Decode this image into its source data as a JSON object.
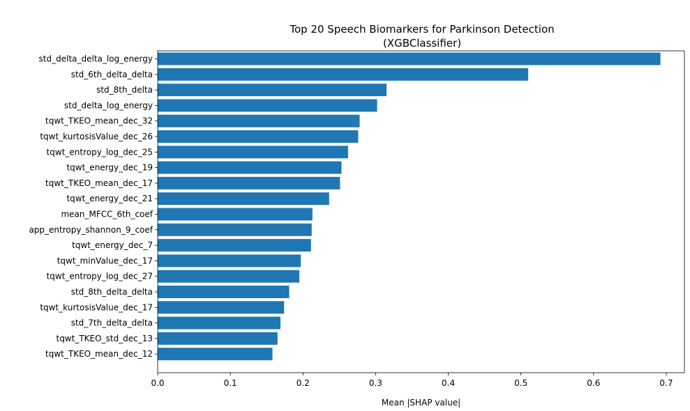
{
  "chart_data": {
    "type": "bar",
    "orientation": "horizontal",
    "title": "Top 20 Speech Biomarkers for Parkinson Detection",
    "subtitle": "(XGBClassifier)",
    "xlabel": "Mean |SHAP value|",
    "ylabel": "",
    "xlim": [
      0,
      0.725
    ],
    "x_ticks": [
      "0.0",
      "0.1",
      "0.2",
      "0.3",
      "0.4",
      "0.5",
      "0.6",
      "0.7"
    ],
    "grid": false,
    "legend": "none",
    "bar_color": "#1f77b4",
    "categories": [
      "std_delta_delta_log_energy",
      "std_6th_delta_delta",
      "std_8th_delta",
      "std_delta_log_energy",
      "tqwt_TKEO_mean_dec_32",
      "tqwt_kurtosisValue_dec_26",
      "tqwt_entropy_log_dec_25",
      "tqwt_energy_dec_19",
      "tqwt_TKEO_mean_dec_17",
      "tqwt_energy_dec_21",
      "mean_MFCC_6th_coef",
      "app_entropy_shannon_9_coef",
      "tqwt_energy_dec_7",
      "tqwt_minValue_dec_17",
      "tqwt_entropy_log_dec_27",
      "std_8th_delta_delta",
      "tqwt_kurtosisValue_dec_17",
      "std_7th_delta_delta",
      "tqwt_TKEO_std_dec_13",
      "tqwt_TKEO_mean_dec_12"
    ],
    "values": [
      0.692,
      0.51,
      0.315,
      0.302,
      0.278,
      0.276,
      0.262,
      0.253,
      0.251,
      0.236,
      0.213,
      0.212,
      0.211,
      0.197,
      0.195,
      0.181,
      0.174,
      0.169,
      0.165,
      0.158
    ]
  }
}
